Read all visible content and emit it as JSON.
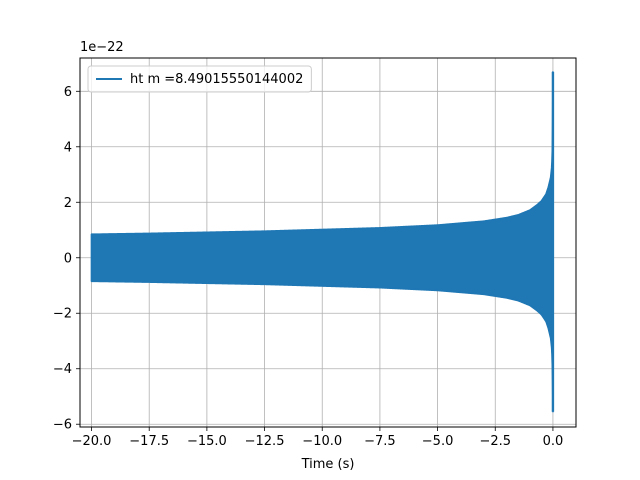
{
  "chart_data": {
    "type": "line",
    "title": "",
    "xlabel": "Time (s)",
    "ylabel": "",
    "y_offset_label": "1e−22",
    "xlim": [
      -20.5,
      1.0
    ],
    "ylim": [
      -6.1,
      7.2
    ],
    "grid": true,
    "legend_position": "top-left",
    "x_ticks": [
      -20.0,
      -17.5,
      -15.0,
      -12.5,
      -10.0,
      -7.5,
      -5.0,
      -2.5,
      0.0
    ],
    "x_tick_labels": [
      "−20.0",
      "−17.5",
      "−15.0",
      "−12.5",
      "−10.0",
      "−7.5",
      "−5.0",
      "−2.5",
      "0.0"
    ],
    "y_ticks": [
      -6,
      -4,
      -2,
      0,
      2,
      4,
      6
    ],
    "y_tick_labels": [
      "−6",
      "−4",
      "−2",
      "0",
      "2",
      "4",
      "6"
    ],
    "series": [
      {
        "name": "ht m =8.49015550144002",
        "color": "#1f77b4",
        "x": [
          -20.0,
          -19.95,
          -17.5,
          -15.0,
          -12.5,
          -10.0,
          -7.5,
          -5.0,
          -3.0,
          -2.0,
          -1.5,
          -1.0,
          -0.7,
          -0.5,
          -0.3,
          -0.2,
          -0.1,
          -0.05,
          -0.02,
          0.0
        ],
        "y_upper": [
          0.85,
          0.85,
          0.88,
          0.92,
          0.96,
          1.02,
          1.08,
          1.18,
          1.32,
          1.45,
          1.55,
          1.72,
          1.9,
          2.05,
          2.3,
          2.55,
          2.9,
          3.3,
          4.1,
          6.7
        ],
        "y_lower": [
          -0.85,
          -0.85,
          -0.88,
          -0.92,
          -0.96,
          -1.02,
          -1.08,
          -1.18,
          -1.32,
          -1.45,
          -1.55,
          -1.72,
          -1.9,
          -2.05,
          -2.3,
          -2.55,
          -2.9,
          -3.3,
          -4.1,
          -5.55
        ]
      }
    ]
  }
}
